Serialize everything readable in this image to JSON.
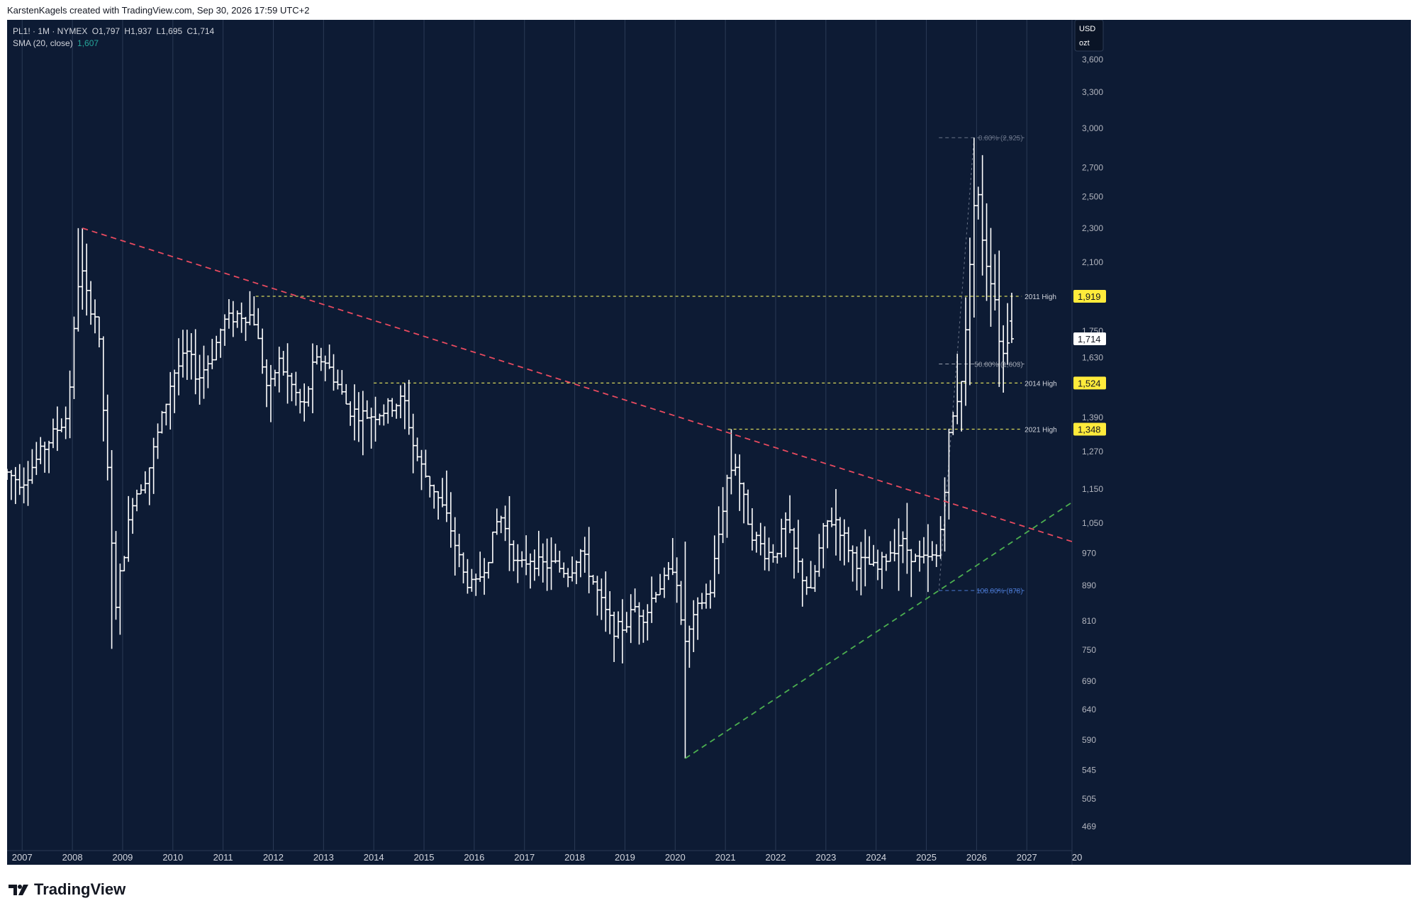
{
  "header": {
    "credit": "KarstenKagels created with TradingView.com, Sep 30, 2026 17:59 UTC+2"
  },
  "legend": {
    "symbol": "PL1! · 1M · NYMEX",
    "open": "O1,797",
    "high": "H1,937",
    "low": "L1,695",
    "close": "C1,714",
    "sma_label": "SMA (20, close)",
    "sma_value": "1,607"
  },
  "axis": {
    "currency": "USD",
    "unit": "ozt"
  },
  "footer": {
    "brand": "TradingView"
  },
  "colors": {
    "background": "#0d1b34",
    "bars": "#ffffff",
    "downtrend": "#e84a5f",
    "uptrend": "#4caf50",
    "resistance": "#d6d65a",
    "highlight": "#ffeb3b"
  },
  "chart_data": {
    "type": "ohlc",
    "x_ticks": [
      "2007",
      "2008",
      "2009",
      "2010",
      "2011",
      "2012",
      "2013",
      "2014",
      "2015",
      "2016",
      "2017",
      "2018",
      "2019",
      "2020",
      "2021",
      "2022",
      "2023",
      "2024",
      "2025",
      "2026",
      "2027",
      "20"
    ],
    "y_ticks": [
      "3,600",
      "3,300",
      "3,000",
      "2,700",
      "2,500",
      "2,300",
      "2,100",
      "1,750",
      "1,630",
      "1,390",
      "1,270",
      "1,150",
      "1,050",
      "970",
      "890",
      "810",
      "750",
      "690",
      "640",
      "590",
      "545",
      "505",
      "469"
    ],
    "y_scale": "log",
    "ylim": [
      440,
      4000
    ],
    "xlim": [
      2006.7,
      2027.9
    ],
    "last_price": "1,714",
    "level_labels": [
      {
        "label": "2011 High",
        "value": 1919,
        "tag": "1,919"
      },
      {
        "label": "2014 High",
        "value": 1524,
        "tag": "1,524"
      },
      {
        "label": "2021 High",
        "value": 1348,
        "tag": "1,348"
      }
    ],
    "fib_levels": [
      {
        "label": "0.00% (2,925)",
        "value": 2925
      },
      {
        "label": "50.00% (1,603)",
        "value": 1603
      },
      {
        "label": "100.00% (878)",
        "value": 878
      }
    ],
    "trendlines": [
      {
        "name": "downtrend",
        "from": [
          2008.2,
          2300
        ],
        "to": [
          2027.9,
          1000
        ]
      },
      {
        "name": "uptrend",
        "from": [
          2020.2,
          562
        ],
        "to": [
          2027.9,
          1110
        ]
      }
    ],
    "anchors": [
      [
        2006.7,
        1200
      ],
      [
        2007.0,
        1170
      ],
      [
        2007.5,
        1300
      ],
      [
        2007.9,
        1400
      ],
      [
        2008.15,
        2100
      ],
      [
        2008.3,
        1900
      ],
      [
        2008.5,
        1800
      ],
      [
        2008.7,
        1200
      ],
      [
        2008.85,
        840
      ],
      [
        2009.0,
        950
      ],
      [
        2009.2,
        1120
      ],
      [
        2009.5,
        1200
      ],
      [
        2009.8,
        1400
      ],
      [
        2010.0,
        1560
      ],
      [
        2010.3,
        1650
      ],
      [
        2010.5,
        1540
      ],
      [
        2010.8,
        1650
      ],
      [
        2011.0,
        1790
      ],
      [
        2011.3,
        1830
      ],
      [
        2011.6,
        1820
      ],
      [
        2011.7,
        1700
      ],
      [
        2011.9,
        1480
      ],
      [
        2012.1,
        1620
      ],
      [
        2012.4,
        1500
      ],
      [
        2012.6,
        1420
      ],
      [
        2012.8,
        1600
      ],
      [
        2013.0,
        1630
      ],
      [
        2013.3,
        1510
      ],
      [
        2013.5,
        1420
      ],
      [
        2013.8,
        1400
      ],
      [
        2014.0,
        1400
      ],
      [
        2014.3,
        1430
      ],
      [
        2014.5,
        1450
      ],
      [
        2014.6,
        1460
      ],
      [
        2014.8,
        1280
      ],
      [
        2015.0,
        1200
      ],
      [
        2015.2,
        1150
      ],
      [
        2015.5,
        1050
      ],
      [
        2015.8,
        910
      ],
      [
        2016.0,
        880
      ],
      [
        2016.3,
        970
      ],
      [
        2016.5,
        1080
      ],
      [
        2016.7,
        1000
      ],
      [
        2016.9,
        930
      ],
      [
        2017.1,
        960
      ],
      [
        2017.3,
        940
      ],
      [
        2017.6,
        940
      ],
      [
        2017.9,
        920
      ],
      [
        2018.1,
        980
      ],
      [
        2018.3,
        920
      ],
      [
        2018.6,
        830
      ],
      [
        2018.8,
        790
      ],
      [
        2019.0,
        800
      ],
      [
        2019.2,
        840
      ],
      [
        2019.4,
        820
      ],
      [
        2019.6,
        880
      ],
      [
        2019.8,
        900
      ],
      [
        2020.0,
        950
      ],
      [
        2020.15,
        760
      ],
      [
        2020.3,
        790
      ],
      [
        2020.5,
        850
      ],
      [
        2020.7,
        880
      ],
      [
        2020.9,
        1050
      ],
      [
        2021.05,
        1200
      ],
      [
        2021.2,
        1230
      ],
      [
        2021.5,
        1030
      ],
      [
        2021.8,
        970
      ],
      [
        2022.0,
        970
      ],
      [
        2022.2,
        1050
      ],
      [
        2022.5,
        920
      ],
      [
        2022.7,
        870
      ],
      [
        2022.9,
        1000
      ],
      [
        2023.0,
        1050
      ],
      [
        2023.2,
        1060
      ],
      [
        2023.4,
        1000
      ],
      [
        2023.6,
        950
      ],
      [
        2023.9,
        940
      ],
      [
        2024.0,
        920
      ],
      [
        2024.3,
        980
      ],
      [
        2024.5,
        1000
      ],
      [
        2024.8,
        950
      ],
      [
        2025.0,
        950
      ],
      [
        2025.2,
        960
      ],
      [
        2025.3,
        1050
      ],
      [
        2025.45,
        1320
      ],
      [
        2025.6,
        1450
      ],
      [
        2025.75,
        1600
      ],
      [
        2025.9,
        2300
      ],
      [
        2026.0,
        2600
      ],
      [
        2026.1,
        2280
      ],
      [
        2026.2,
        2100
      ],
      [
        2026.35,
        1950
      ],
      [
        2026.5,
        1620
      ],
      [
        2026.6,
        1700
      ],
      [
        2026.68,
        1800
      ]
    ]
  }
}
